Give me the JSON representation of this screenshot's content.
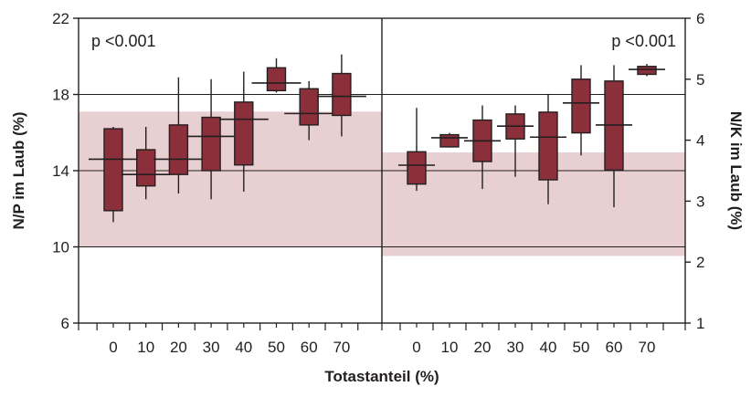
{
  "chart_data": [
    {
      "type": "box",
      "panel": "left",
      "ylabel": "N/P im Laub (%)",
      "ylim": [
        6,
        22
      ],
      "yticks": [
        6,
        10,
        14,
        18,
        22
      ],
      "reference_band": [
        10,
        17.1
      ],
      "reference_lines": [
        10,
        14,
        18
      ],
      "annotation": "p <0.001",
      "categories": [
        "0",
        "10",
        "20",
        "30",
        "40",
        "50",
        "60",
        "70"
      ],
      "boxes": [
        {
          "category": "0",
          "min": 11.3,
          "q1": 11.9,
          "median": 14.6,
          "q3": 16.2,
          "max": 16.3
        },
        {
          "category": "10",
          "min": 12.5,
          "q1": 13.2,
          "median": 13.8,
          "q3": 15.1,
          "max": 16.3
        },
        {
          "category": "20",
          "min": 12.8,
          "q1": 13.8,
          "median": 14.6,
          "q3": 16.4,
          "max": 18.9
        },
        {
          "category": "30",
          "min": 12.5,
          "q1": 14.0,
          "median": 15.8,
          "q3": 16.8,
          "max": 18.8
        },
        {
          "category": "40",
          "min": 12.9,
          "q1": 14.3,
          "median": 16.7,
          "q3": 17.6,
          "max": 19.2
        },
        {
          "category": "50",
          "min": 18.1,
          "q1": 18.2,
          "median": 18.6,
          "q3": 19.4,
          "max": 19.9
        },
        {
          "category": "60",
          "min": 15.6,
          "q1": 16.4,
          "median": 17.0,
          "q3": 18.3,
          "max": 18.7
        },
        {
          "category": "70",
          "min": 15.8,
          "q1": 16.9,
          "median": 17.9,
          "q3": 19.1,
          "max": 20.1
        }
      ]
    },
    {
      "type": "box",
      "panel": "right",
      "ylabel": "N/K im Laub (%)",
      "ylim": [
        1,
        6
      ],
      "yticks": [
        1,
        2,
        3,
        4,
        5,
        6
      ],
      "reference_band": [
        2.1,
        3.8
      ],
      "reference_lines": [
        2.25,
        3.5,
        4.75
      ],
      "annotation": "p <0.001",
      "categories": [
        "0",
        "10",
        "20",
        "30",
        "40",
        "50",
        "60",
        "70"
      ],
      "boxes": [
        {
          "category": "0",
          "min": 3.17,
          "q1": 3.28,
          "median": 3.59,
          "q3": 3.81,
          "max": 4.53
        },
        {
          "category": "10",
          "min": 3.88,
          "q1": 3.89,
          "median": 4.04,
          "q3": 4.09,
          "max": 4.12
        },
        {
          "category": "20",
          "min": 3.2,
          "q1": 3.65,
          "median": 3.99,
          "q3": 4.33,
          "max": 4.57
        },
        {
          "category": "30",
          "min": 3.4,
          "q1": 4.02,
          "median": 4.23,
          "q3": 4.43,
          "max": 4.57
        },
        {
          "category": "40",
          "min": 2.95,
          "q1": 3.35,
          "median": 4.05,
          "q3": 4.46,
          "max": 4.76
        },
        {
          "category": "50",
          "min": 3.75,
          "q1": 4.12,
          "median": 4.61,
          "q3": 5.0,
          "max": 5.23
        },
        {
          "category": "60",
          "min": 2.9,
          "q1": 3.51,
          "median": 4.25,
          "q3": 4.97,
          "max": 5.23
        },
        {
          "category": "70",
          "min": 5.05,
          "q1": 5.08,
          "median": 5.16,
          "q3": 5.21,
          "max": 5.25
        }
      ]
    }
  ],
  "xlabel": "Totastanteil (%)",
  "colors": {
    "box_fill": "#8b2f3a",
    "box_stroke": "#231f20",
    "band": "#e8cfd1",
    "line": "#231f20"
  }
}
